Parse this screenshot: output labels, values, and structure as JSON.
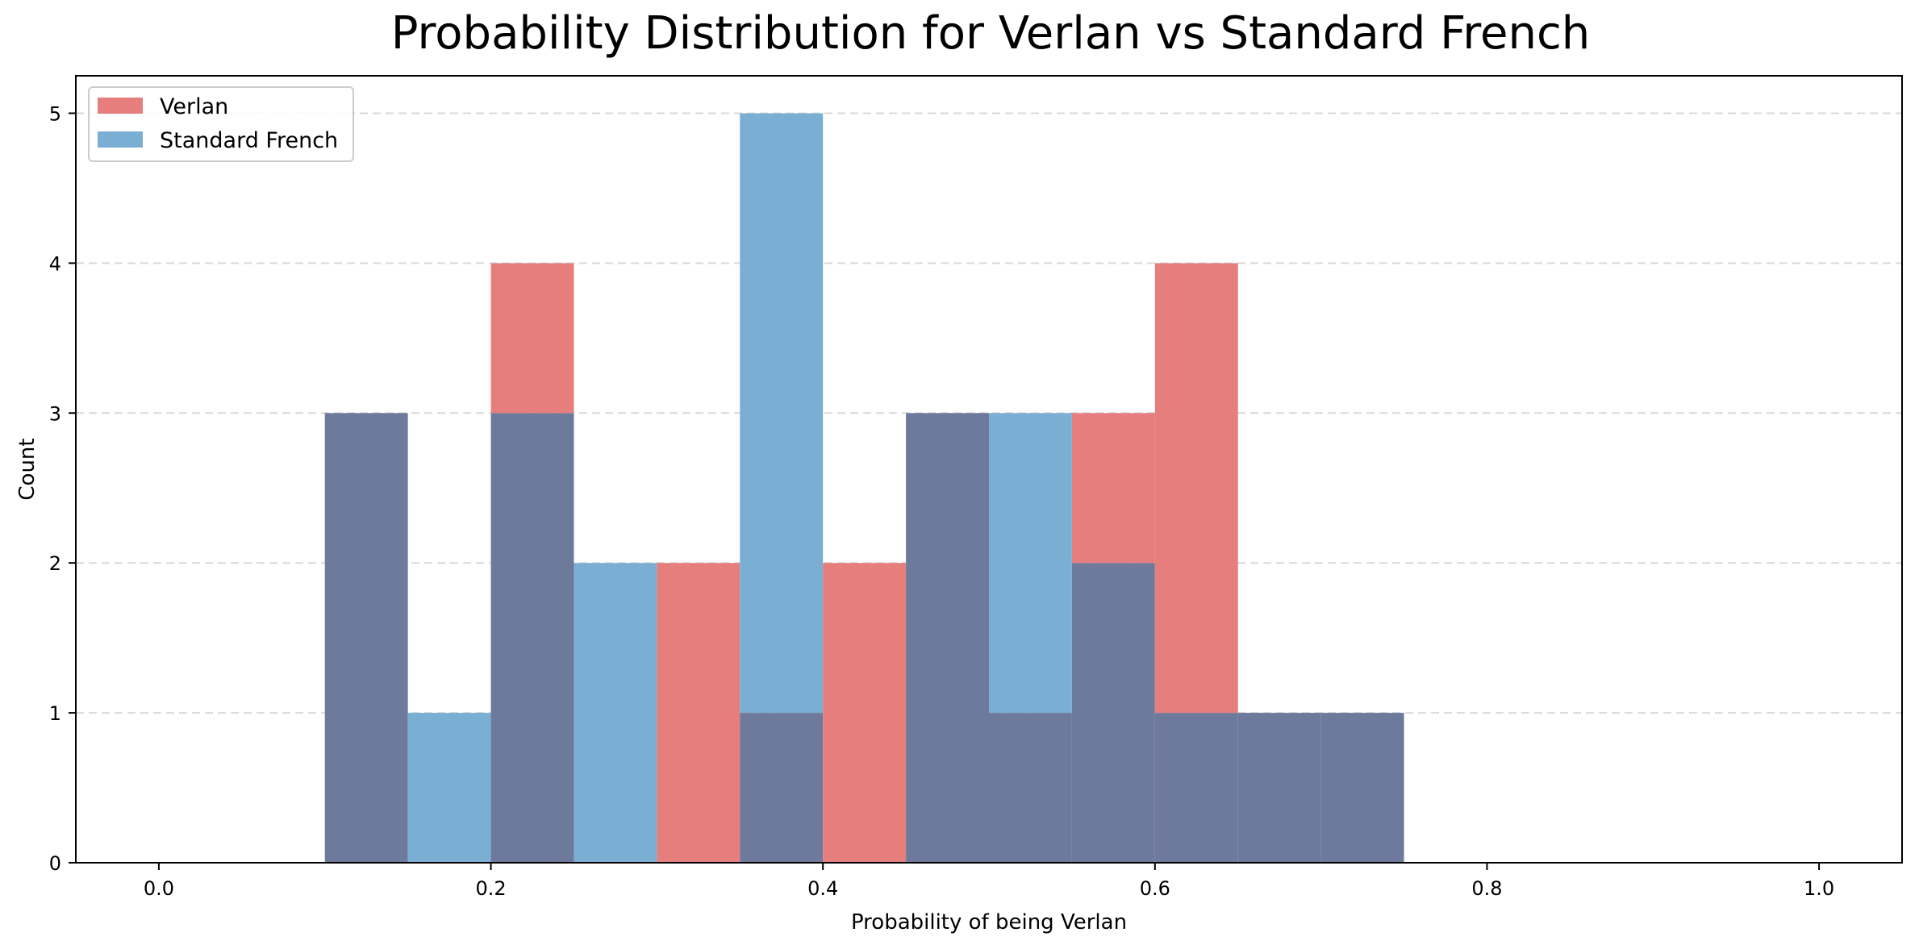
{
  "chart_data": {
    "type": "histogram",
    "title": "Probability Distribution for Verlan vs Standard French",
    "xlabel": "Probability of being Verlan",
    "ylabel": "Count",
    "xlim": [
      -0.05,
      1.05
    ],
    "ylim": [
      0,
      5.25
    ],
    "xticks": [
      "0.0",
      "0.2",
      "0.4",
      "0.6",
      "0.8",
      "1.0"
    ],
    "xtick_values": [
      0.0,
      0.2,
      0.4,
      0.6,
      0.8,
      1.0
    ],
    "yticks": [
      "0",
      "1",
      "2",
      "3",
      "4",
      "5"
    ],
    "ytick_values": [
      0,
      1,
      2,
      3,
      4,
      5
    ],
    "grid": "y-dashed",
    "legend_position": "top-left",
    "bin_edges": [
      0.0,
      0.05,
      0.1,
      0.15,
      0.2,
      0.25,
      0.3,
      0.35,
      0.4,
      0.45,
      0.5,
      0.55,
      0.6,
      0.65,
      0.7,
      0.75,
      0.8,
      0.85,
      0.9,
      0.95,
      1.0
    ],
    "overlap_color": "#6e7a9b",
    "series": [
      {
        "name": "Verlan",
        "color": "#e67e7e",
        "values": [
          0,
          0,
          3,
          0,
          4,
          0,
          2,
          1,
          2,
          3,
          1,
          3,
          4,
          1,
          1,
          0,
          0,
          0,
          0,
          0
        ]
      },
      {
        "name": "Standard French",
        "color": "#7aafd3",
        "values": [
          0,
          0,
          3,
          1,
          3,
          2,
          0,
          5,
          0,
          3,
          3,
          2,
          1,
          1,
          1,
          0,
          0,
          0,
          0,
          0
        ]
      }
    ]
  }
}
